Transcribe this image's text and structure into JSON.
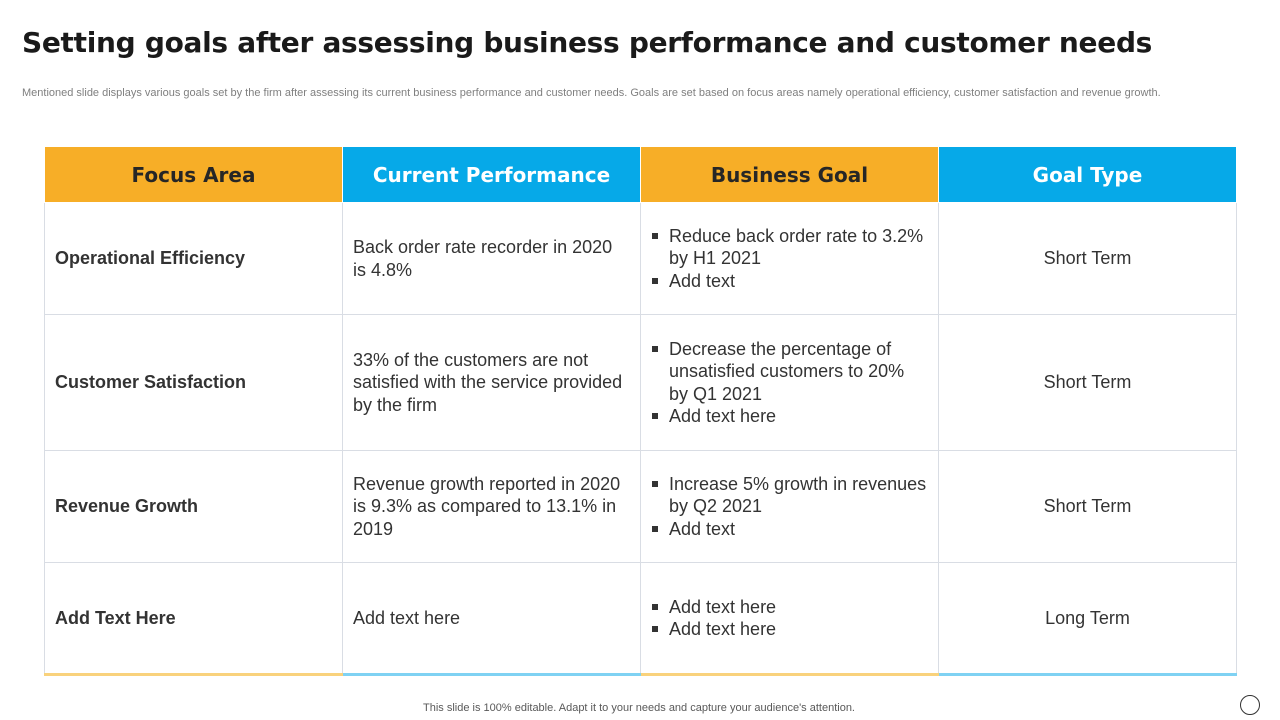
{
  "title": "Setting goals after assessing business performance and customer needs",
  "subtitle": "Mentioned slide displays various goals set by the firm after assessing its current business performance and customer needs. Goals are set based on focus areas namely operational efficiency, customer satisfaction and revenue growth.",
  "table": {
    "headers": [
      "Focus Area",
      "Current Performance",
      "Business Goal",
      "Goal Type"
    ],
    "header_colors": [
      "#f7ae27",
      "#06a9e8",
      "#f7ae27",
      "#06a9e8"
    ],
    "rows": [
      {
        "focus": "Operational Efficiency",
        "performance": "Back order rate recorder in 2020 is 4.8%",
        "goals": [
          "Reduce back order rate to 3.2% by H1 2021",
          "Add text"
        ],
        "type": "Short Term"
      },
      {
        "focus": "Customer Satisfaction",
        "performance": "33% of the customers are not satisfied with the service provided by the firm",
        "goals": [
          "Decrease the percentage of unsatisfied customers to 20% by Q1 2021",
          "Add text here"
        ],
        "type": "Short Term"
      },
      {
        "focus": "Revenue Growth",
        "performance": "Revenue growth reported in 2020 is 9.3% as compared to 13.1% in 2019",
        "goals": [
          "Increase 5% growth in revenues by Q2 2021",
          "Add text"
        ],
        "type": "Short Term"
      },
      {
        "focus": "Add Text Here",
        "performance": "Add text here",
        "goals": [
          "Add text here",
          "Add text here"
        ],
        "type": "Long Term"
      }
    ]
  },
  "footer": "This slide is 100% editable. Adapt it to your needs and capture your audience's attention."
}
